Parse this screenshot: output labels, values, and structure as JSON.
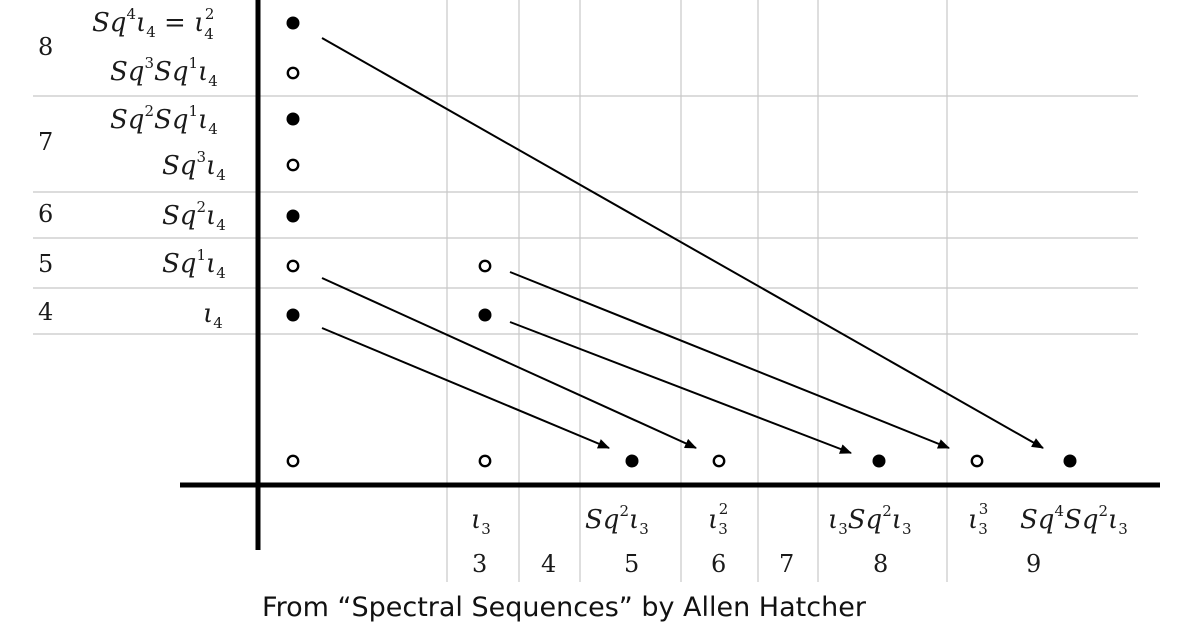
{
  "fiber_degrees": [
    "8",
    "7",
    "6",
    "5",
    "4"
  ],
  "base_degrees": [
    "3",
    "4",
    "5",
    "6",
    "7",
    "8",
    "9"
  ],
  "fiber_classes": [
    {
      "base": "Sq",
      "sup1": "4",
      "mid": "ι",
      "sub": "4",
      "tail": " = ι",
      "tailsub": "4",
      "tailsup": "2"
    },
    {
      "base": "Sq",
      "sup1": "3",
      "mid": "Sq",
      "sup2": "1",
      "mid2": "ι",
      "sub": "4"
    },
    {
      "base": "Sq",
      "sup1": "2",
      "mid": "Sq",
      "sup2": "1",
      "mid2": "ι",
      "sub": "4"
    },
    {
      "base": "Sq",
      "sup1": "3",
      "mid": "ι",
      "sub": "4"
    },
    {
      "base": "Sq",
      "sup1": "2",
      "mid": "ι",
      "sub": "4"
    },
    {
      "base": "Sq",
      "sup1": "1",
      "mid": "ι",
      "sub": "4"
    },
    {
      "base": "ι",
      "sub": "4"
    }
  ],
  "base_classes": [
    {
      "text": "ι",
      "sub": "3"
    },
    {
      "text": "Sq",
      "sup": "2",
      "text2": "ι",
      "sub": "3"
    },
    {
      "text": "ι",
      "sub": "3",
      "sup": "2"
    },
    {
      "text": "ι",
      "sub": "3",
      "text2": "Sq",
      "sup": "2",
      "text3": "ι",
      "sub2": "3"
    },
    {
      "text": "ι",
      "sub": "3",
      "sup": "3"
    },
    {
      "text": "Sq",
      "sup": "4",
      "text2": "Sq",
      "sup2": "2",
      "text3": "ι",
      "sub": "3"
    }
  ],
  "caption": "From “Spectral Sequences” by Allen Hatcher"
}
